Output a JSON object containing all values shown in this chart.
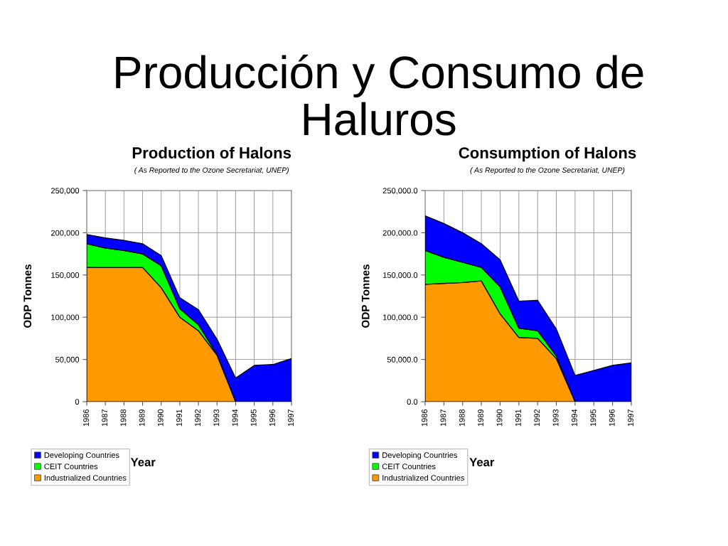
{
  "chart_data": [
    {
      "type": "area",
      "stacked": true,
      "title": "Production of Halons",
      "subtitle": "( As Reported to the Ozone Secretariat, UNEP)",
      "xlabel": "Year",
      "ylabel": "ODP Tonnes",
      "annotations": [
        "Producción y Consumo de Haluros"
      ],
      "categories": [
        "1986",
        "1987",
        "1988",
        "1989",
        "1990",
        "1991",
        "1992",
        "1993",
        "1994",
        "1995",
        "1996",
        "1997"
      ],
      "series": [
        {
          "name": "Industrialized Countries",
          "color": "#ff9900",
          "values": [
            159000,
            159000,
            159000,
            159000,
            135000,
            100000,
            84000,
            55000,
            0,
            0,
            0,
            0
          ]
        },
        {
          "name": "CEIT Countries",
          "color": "#00ff00",
          "values": [
            28000,
            23000,
            20000,
            16000,
            26000,
            10000,
            7000,
            1000,
            0,
            0,
            0,
            0
          ]
        },
        {
          "name": "Developing Countries",
          "color": "#0000ff",
          "values": [
            11000,
            12000,
            12000,
            12000,
            12000,
            13000,
            18000,
            18000,
            28000,
            43000,
            44000,
            51000
          ]
        }
      ],
      "ylim": [
        0,
        250000
      ],
      "yticks": [
        0,
        {
          "value": 50000,
          "label": "50,000"
        },
        {
          "value": 100000,
          "label": "100,000"
        },
        {
          "value": 150000,
          "label": "150,000"
        },
        {
          "value": 200000,
          "label": "200,000"
        },
        {
          "value": 250000,
          "label": "250,000"
        }
      ],
      "grid": true,
      "legend": "bottom left"
    },
    {
      "type": "area",
      "stacked": true,
      "title": "Consumption of Halons",
      "subtitle": "( As Reported to the Ozone Secretariat, UNEP)",
      "xlabel": "Year",
      "ylabel": "ODP Tonnes",
      "categories": [
        "1986",
        "1987",
        "1988",
        "1989",
        "1990",
        "1991",
        "1992",
        "1993",
        "1994",
        "1995",
        "1996",
        "1997"
      ],
      "series": [
        {
          "name": "Industrialized Countries",
          "color": "#ff9900",
          "values": [
            139000,
            140000,
            141000,
            143000,
            104000,
            76000,
            75000,
            51000,
            0,
            0,
            0,
            0
          ]
        },
        {
          "name": "CEIT Countries",
          "color": "#00ff00",
          "values": [
            40000,
            31000,
            24000,
            16000,
            32000,
            11000,
            9000,
            3000,
            0,
            0,
            0,
            0
          ]
        },
        {
          "name": "Developing Countries",
          "color": "#0000ff",
          "values": [
            41000,
            40000,
            35000,
            28000,
            32000,
            32000,
            36000,
            32000,
            31000,
            37000,
            43000,
            46000
          ]
        }
      ],
      "ylim": [
        0,
        250000
      ],
      "yticks": [
        {
          "value": 0,
          "label": "0.0"
        },
        {
          "value": 50000,
          "label": "50,000.0"
        },
        {
          "value": 100000,
          "label": "100,000.0"
        },
        {
          "value": 150000,
          "label": "150,000.0"
        },
        {
          "value": 200000,
          "label": "200,000.0"
        },
        {
          "value": 250000,
          "label": "250,000.0"
        }
      ],
      "grid": true,
      "legend": "bottom left"
    }
  ]
}
